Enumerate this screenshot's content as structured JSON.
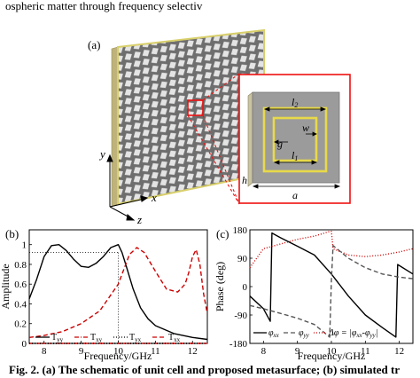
{
  "caption": {
    "top_line": "ospheric matter through frequency selectiv",
    "bottom_line": "Fig. 2. (a) The schematic of unit cell and proposed metasurface; (b) simulated tr"
  },
  "panel_a": {
    "label": "(a)",
    "axis_labels": {
      "x": "x",
      "y": "y",
      "z": "z"
    },
    "dim_labels": {
      "l2": "l",
      "l2_sub": "2",
      "l1": "l",
      "l1_sub": "1",
      "g": "g",
      "w": "w",
      "a": "a",
      "h": "h"
    },
    "colors": {
      "substrate": "#c9c3a3",
      "edge": "#d8cf6a",
      "pattern": "#8f8f8f",
      "highlight": "#ee1111",
      "ring": "#e8d94a"
    }
  },
  "chart_data": [
    {
      "type": "line",
      "panel_label": "(b)",
      "xlabel": "Frequency/GHz",
      "ylabel": "Amplitude",
      "xlim": [
        7.6,
        12.4
      ],
      "ylim": [
        0,
        1.15
      ],
      "xticks": [
        "8",
        "9",
        "10",
        "11",
        "12"
      ],
      "yticks": [
        "0",
        "0.2",
        "0.4",
        "0.6",
        "0.8",
        "1"
      ],
      "reference_lines": [
        {
          "axis": "y",
          "value": 0.92
        },
        {
          "axis": "x",
          "value": 10.0
        }
      ],
      "series": [
        {
          "name": "T",
          "sub": "yy",
          "style": "solid",
          "color": "#000000",
          "x": [
            7.6,
            7.8,
            8.0,
            8.2,
            8.4,
            8.6,
            8.8,
            9.0,
            9.2,
            9.4,
            9.6,
            9.8,
            10.0,
            10.1,
            10.2,
            10.4,
            10.6,
            10.8,
            11.0,
            11.5,
            12.0,
            12.4
          ],
          "y": [
            0.45,
            0.65,
            0.88,
            0.99,
            1.0,
            0.94,
            0.85,
            0.78,
            0.77,
            0.81,
            0.88,
            0.97,
            1.0,
            0.92,
            0.8,
            0.55,
            0.36,
            0.25,
            0.18,
            0.1,
            0.06,
            0.04
          ]
        },
        {
          "name": "T",
          "sub": "xy",
          "style": "dash-dot",
          "color": "#cc0000",
          "x": [
            7.6,
            12.4
          ],
          "y": [
            0.0,
            0.0
          ]
        },
        {
          "name": "T",
          "sub": "yx",
          "style": "dotted",
          "color": "#000000",
          "x": [
            7.6,
            12.4
          ],
          "y": [
            0.0,
            0.0
          ]
        },
        {
          "name": "T",
          "sub": "xx",
          "style": "dashed",
          "color": "#cc0000",
          "x": [
            7.6,
            8.0,
            8.5,
            9.0,
            9.5,
            10.0,
            10.3,
            10.5,
            10.7,
            11.0,
            11.3,
            11.6,
            11.8,
            11.9,
            12.0,
            12.1,
            12.2,
            12.3,
            12.4
          ],
          "y": [
            0.06,
            0.08,
            0.12,
            0.2,
            0.33,
            0.6,
            0.9,
            0.97,
            0.92,
            0.73,
            0.55,
            0.52,
            0.6,
            0.72,
            0.88,
            0.95,
            0.8,
            0.5,
            0.3
          ]
        }
      ]
    },
    {
      "type": "line",
      "panel_label": "(c)",
      "xlabel": "Frequency/GHz",
      "ylabel": "Phase (deg)",
      "xlim": [
        7.6,
        12.4
      ],
      "ylim": [
        -180,
        180
      ],
      "xticks": [
        "8",
        "9",
        "10",
        "11",
        "12"
      ],
      "yticks": [
        "-180",
        "-90",
        "0",
        "90",
        "180"
      ],
      "series": [
        {
          "name": "φ",
          "sub": "xx",
          "style": "solid",
          "color": "#000000",
          "x": [
            7.6,
            8.0,
            8.2,
            8.25,
            8.5,
            9.0,
            9.5,
            10.0,
            10.5,
            11.0,
            11.5,
            11.9,
            11.95,
            12.4
          ],
          "y": [
            -30,
            -70,
            -110,
            170,
            155,
            128,
            100,
            40,
            -30,
            -90,
            -130,
            -160,
            70,
            40
          ]
        },
        {
          "name": "φ",
          "sub": "yy",
          "style": "dashed",
          "color": "#555555",
          "x": [
            7.6,
            8.0,
            8.5,
            9.0,
            9.5,
            9.95,
            10.0,
            10.05,
            10.5,
            11.0,
            11.5,
            12.0,
            12.4
          ],
          "y": [
            -60,
            -70,
            -85,
            -100,
            -120,
            -160,
            20,
            130,
            90,
            60,
            40,
            30,
            25
          ]
        },
        {
          "name": "Δφ",
          "style": "dotted",
          "color": "#cc0000",
          "x": [
            7.6,
            8.0,
            8.5,
            9.0,
            9.5,
            9.95,
            10.0,
            10.05,
            10.5,
            11.0,
            11.5,
            12.0,
            12.4
          ],
          "y": [
            60,
            120,
            135,
            150,
            160,
            175,
            175,
            120,
            100,
            95,
            100,
            110,
            120
          ]
        }
      ],
      "legend": {
        "phi_xx": "φ",
        "phi_xx_sub": "xx",
        "phi_yy": "φ",
        "phi_yy_sub": "yy",
        "delta": "Δφ = |φ",
        "delta_sub1": "xx",
        "delta_mid": "-φ",
        "delta_sub2": "yy",
        "delta_end": "|"
      }
    }
  ]
}
